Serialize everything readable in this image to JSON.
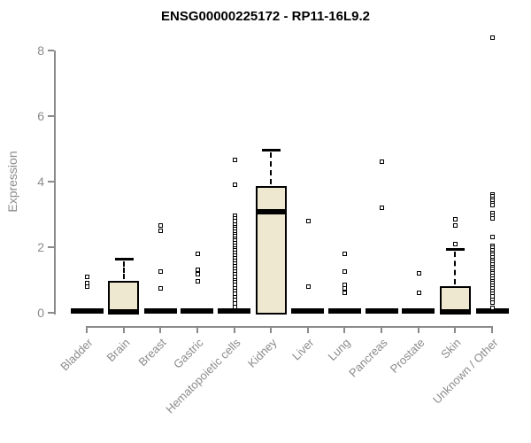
{
  "colors": {
    "box_fill": "#EDE8CF",
    "box_border": "#000000",
    "axis_gray": "#8B8B8B",
    "title_color": "#000000",
    "background": "#FFFFFF"
  },
  "chart_data": {
    "type": "boxplot",
    "title": "ENSG00000225172 - RP11-16L9.2",
    "xlabel": "",
    "ylabel": "Expression",
    "ylim": [
      0,
      8
    ],
    "yticks": [
      0,
      2,
      4,
      6,
      8
    ],
    "grid": false,
    "legend": false,
    "categories": [
      "Bladder",
      "Brain",
      "Breast",
      "Gastric",
      "Hematopoietic cells",
      "Kidney",
      "Liver",
      "Lung",
      "Pancreas",
      "Prostate",
      "Skin",
      "Unknown / Other"
    ],
    "series": [
      {
        "category": "Bladder",
        "q1": 0,
        "median": 0,
        "q3": 0,
        "whisker_high": 0,
        "outliers": [
          1.1,
          0.9,
          0.8
        ]
      },
      {
        "category": "Brain",
        "q1": 0,
        "median": 0,
        "q3": 0.97,
        "whisker_high": 1.65,
        "outliers": []
      },
      {
        "category": "Breast",
        "q1": 0,
        "median": 0,
        "q3": 0,
        "whisker_high": 0,
        "outliers": [
          2.65,
          2.5,
          1.25,
          0.75
        ]
      },
      {
        "category": "Gastric",
        "q1": 0,
        "median": 0,
        "q3": 0,
        "whisker_high": 0,
        "outliers": [
          1.8,
          1.3,
          1.18,
          0.97
        ]
      },
      {
        "category": "Hematopoietic cells",
        "q1": 0,
        "median": 0,
        "q3": 0,
        "whisker_high": 0,
        "outliers": [
          4.65,
          3.9,
          2.95,
          2.88,
          2.8,
          2.7,
          2.62,
          2.55,
          2.48,
          2.4,
          2.33,
          2.26,
          2.19,
          2.12,
          2.05,
          1.97,
          1.9,
          1.82,
          1.74,
          1.66,
          1.58,
          1.5,
          1.42,
          1.34,
          1.26,
          1.18,
          1.1,
          1.0,
          0.92,
          0.84,
          0.75,
          0.66,
          0.57,
          0.48,
          0.38,
          0.28,
          0.18
        ]
      },
      {
        "category": "Kidney",
        "q1": 0,
        "median": 3.08,
        "q3": 3.87,
        "whisker_high": 4.97,
        "outliers": []
      },
      {
        "category": "Liver",
        "q1": 0,
        "median": 0,
        "q3": 0,
        "whisker_high": 0,
        "outliers": [
          2.8,
          0.8
        ]
      },
      {
        "category": "Lung",
        "q1": 0,
        "median": 0,
        "q3": 0,
        "whisker_high": 0,
        "outliers": [
          1.8,
          1.27,
          0.85,
          0.73,
          0.62
        ]
      },
      {
        "category": "Pancreas",
        "q1": 0,
        "median": 0,
        "q3": 0,
        "whisker_high": 0,
        "outliers": [
          4.6,
          3.2
        ]
      },
      {
        "category": "Prostate",
        "q1": 0,
        "median": 0,
        "q3": 0,
        "whisker_high": 0,
        "outliers": [
          1.2,
          0.6
        ]
      },
      {
        "category": "Skin",
        "q1": 0,
        "median": 0,
        "q3": 0.8,
        "whisker_high": 1.95,
        "outliers": [
          2.85,
          2.65,
          2.1
        ]
      },
      {
        "category": "Unknown / Other",
        "q1": 0,
        "median": 0,
        "q3": 0,
        "whisker_high": 0,
        "outliers": [
          8.4,
          3.62,
          3.55,
          3.48,
          3.42,
          3.35,
          3.28,
          3.05,
          2.95,
          2.88,
          2.3,
          2.05,
          1.98,
          1.9,
          1.83,
          1.76,
          1.69,
          1.62,
          1.55,
          1.47,
          1.4,
          1.33,
          1.26,
          1.19,
          1.12,
          1.05,
          0.97,
          0.9,
          0.82,
          0.74,
          0.66,
          0.58,
          0.5,
          0.4,
          0.3,
          0.15
        ]
      }
    ]
  }
}
